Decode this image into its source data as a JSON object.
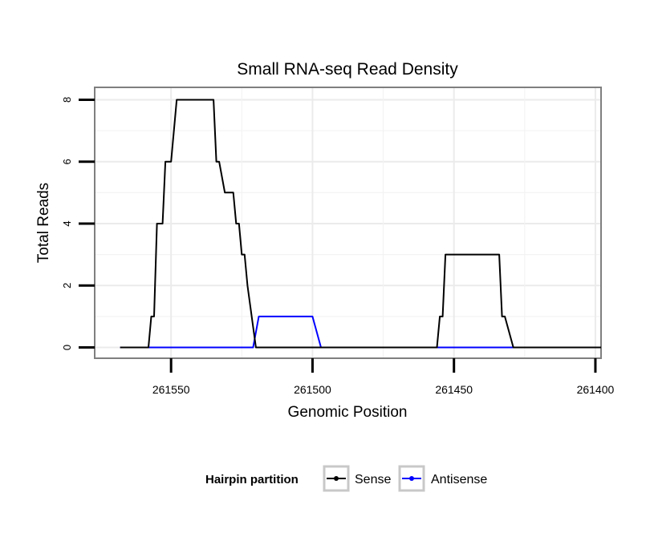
{
  "chart_data": {
    "type": "line",
    "title": "Small RNA-seq Read Density",
    "xlabel": "Genomic Position",
    "ylabel": "Total Reads",
    "xlim": [
      261577,
      261398
    ],
    "x_reversed": true,
    "ylim": [
      -0.35,
      8.4
    ],
    "x_ticks": [
      261550,
      261500,
      261450,
      261400
    ],
    "x_tick_labels": [
      "261550",
      "261500",
      "261450",
      "261400"
    ],
    "y_ticks": [
      0,
      2,
      4,
      6,
      8
    ],
    "y_tick_labels": [
      "0",
      "2",
      "4",
      "6",
      "8"
    ],
    "grid": true,
    "legend": {
      "title": "Hairpin partition",
      "position": "bottom",
      "entries": [
        "Sense",
        "Antisense"
      ]
    },
    "series": [
      {
        "name": "Sense",
        "color": "#000000",
        "x": [
          261568,
          261558,
          261557,
          261556,
          261555,
          261553,
          261552,
          261550,
          261549,
          261548,
          261546,
          261545,
          261535,
          261534,
          261533,
          261531,
          261530,
          261528,
          261527,
          261526,
          261525,
          261524,
          261523,
          261520,
          261516,
          261456,
          261455,
          261454,
          261453,
          261434,
          261433,
          261432,
          261429,
          261398
        ],
        "values": [
          0,
          0,
          1,
          1,
          4,
          4,
          6,
          6,
          7,
          8,
          8,
          8,
          8,
          6,
          6,
          5,
          5,
          5,
          4,
          4,
          3,
          3,
          2,
          0,
          0,
          0,
          1,
          1,
          3,
          3,
          1,
          1,
          0,
          0
        ]
      },
      {
        "name": "Antisense",
        "color": "#0000ff",
        "x": [
          261568,
          261521,
          261519,
          261500,
          261497,
          261398
        ],
        "values": [
          0,
          0,
          1,
          1,
          0,
          0
        ]
      }
    ]
  }
}
